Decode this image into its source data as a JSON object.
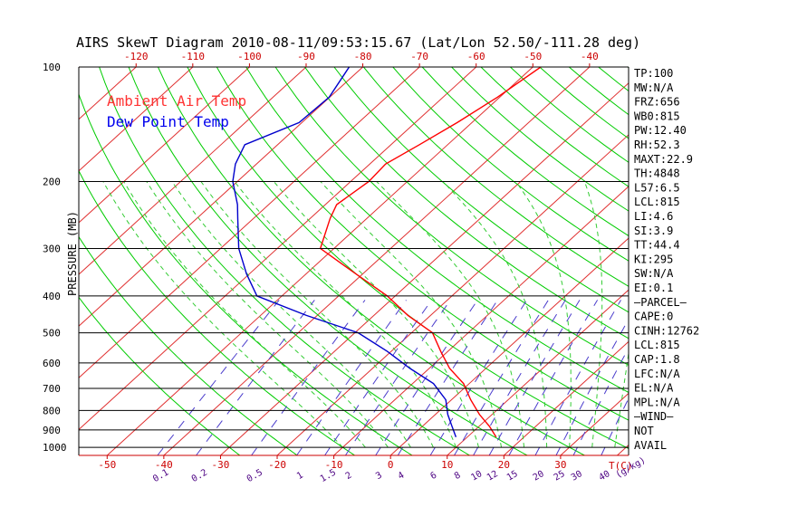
{
  "chart_data": {
    "type": "line",
    "title": "AIRS SkewT Diagram 2010-08-11/09:53:15.67 (Lat/Lon 52.50/-111.28 deg)",
    "ylabel": "PRESSURE (MB)",
    "xlabel_bottom": "T(C)",
    "mixing_label": "(g/kg)",
    "y_scale": "log",
    "ylim": [
      1050,
      100
    ],
    "xlim_surface": [
      -55,
      42
    ],
    "pressure_ticks": [
      100,
      200,
      300,
      400,
      500,
      600,
      700,
      800,
      900,
      1000
    ],
    "top_temp_ticks": [
      -120,
      -110,
      -100,
      -90,
      -80,
      -70,
      -60,
      -50,
      -40
    ],
    "bottom_temp_ticks": [
      -50,
      -40,
      -30,
      -20,
      -10,
      0,
      10,
      20,
      30
    ],
    "mixing_ratio_ticks": [
      "0.1",
      "0.2",
      "0.5",
      "1",
      "1.5",
      "2",
      "3",
      "4",
      "6",
      "8",
      "10",
      "12",
      "15",
      "20",
      "25",
      "30",
      "40"
    ],
    "legend": [
      {
        "name": "Ambient Air Temp",
        "color": "#ff3333"
      },
      {
        "name": "Dew Point Temp",
        "color": "#0000ee"
      }
    ],
    "series": [
      {
        "name": "Ambient Air Temp",
        "color": "#ff0000",
        "points": [
          [
            100,
            -48.6
          ],
          [
            120,
            -50.4
          ],
          [
            140,
            -52.6
          ],
          [
            160,
            -55.0
          ],
          [
            180,
            -57.2
          ],
          [
            200,
            -56.8
          ],
          [
            230,
            -58.0
          ],
          [
            250,
            -56.5
          ],
          [
            300,
            -52.4
          ],
          [
            350,
            -41.2
          ],
          [
            400,
            -31.4
          ],
          [
            450,
            -24.0
          ],
          [
            500,
            -16.3
          ],
          [
            560,
            -11.2
          ],
          [
            620,
            -6.4
          ],
          [
            680,
            -1.0
          ],
          [
            750,
            3.4
          ],
          [
            820,
            7.8
          ],
          [
            880,
            11.8
          ],
          [
            940,
            15.1
          ]
        ]
      },
      {
        "name": "Dew Point Temp",
        "color": "#0000cc",
        "points": [
          [
            100,
            -82.4
          ],
          [
            120,
            -80.1
          ],
          [
            140,
            -80.5
          ],
          [
            160,
            -85.8
          ],
          [
            180,
            -83.7
          ],
          [
            200,
            -80.8
          ],
          [
            230,
            -75.5
          ],
          [
            250,
            -72.8
          ],
          [
            300,
            -66.8
          ],
          [
            350,
            -60.5
          ],
          [
            400,
            -54.4
          ],
          [
            450,
            -41.9
          ],
          [
            500,
            -29.4
          ],
          [
            560,
            -20.6
          ],
          [
            620,
            -13.4
          ],
          [
            680,
            -6.3
          ],
          [
            750,
            -1.0
          ],
          [
            820,
            2.2
          ],
          [
            880,
            5.2
          ],
          [
            940,
            8.0
          ]
        ]
      }
    ]
  },
  "indices": [
    "TP:100",
    "MW:N/A",
    "FRZ:656",
    "WB0:815",
    "PW:12.40",
    "RH:52.3",
    "MAXT:22.9",
    "TH:4848",
    "L57:6.5",
    "LCL:815",
    "LI:4.6",
    "SI:3.9",
    "TT:44.4",
    "KI:295",
    "SW:N/A",
    "EI:0.1",
    "—PARCEL—",
    "CAPE:0",
    "CINH:12762",
    "LCL:815",
    "CAP:1.8",
    "LFC:N/A",
    "EL:N/A",
    "MPL:N/A",
    "—WIND—",
    "NOT",
    "AVAIL"
  ],
  "colors": {
    "isotherm": "#e03030",
    "dry_adiabat": "#00cc00",
    "moist_adiabat": "#33cc33",
    "mixing_ratio": "#4b3dcc",
    "isobar": "#000000",
    "temp_axis": "#cc0000"
  }
}
